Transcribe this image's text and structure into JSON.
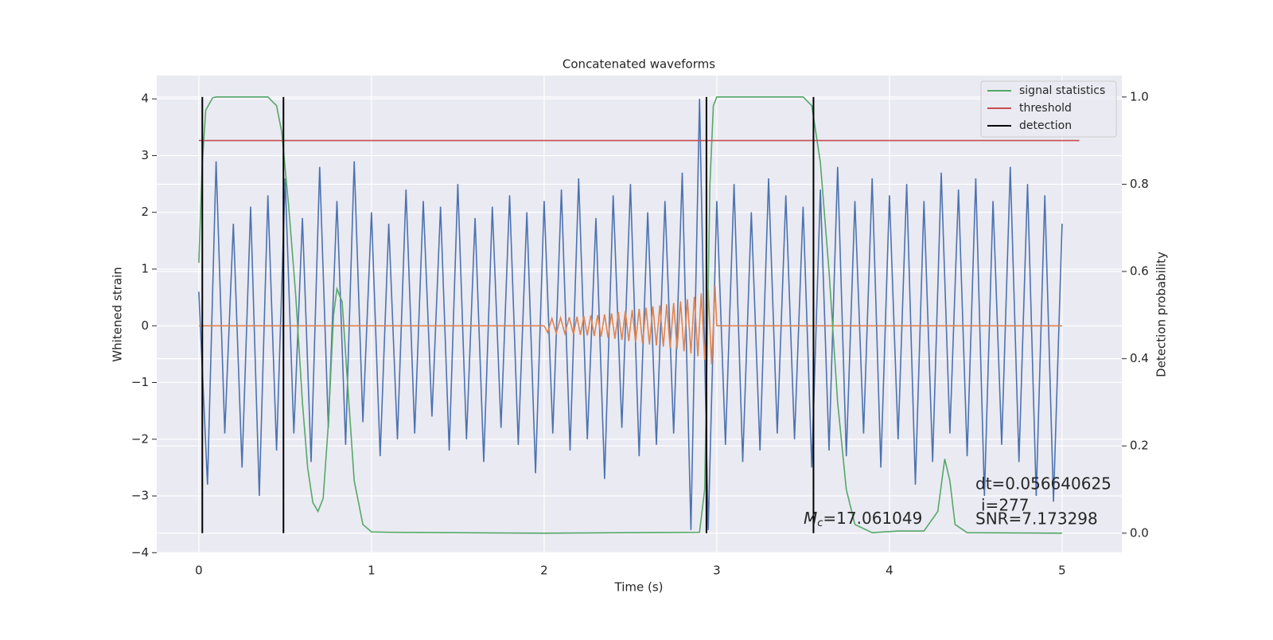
{
  "chart_data": {
    "type": "line",
    "title": "Concatenated waveforms",
    "xlabel": "Time (s)",
    "ylabel": "Whitened strain",
    "y2label": "Detection probability",
    "xlim": [
      -0.244,
      5.346
    ],
    "ylim": [
      -4.01,
      4.41
    ],
    "y2lim": [
      -0.046,
      1.049
    ],
    "xticks": [
      0,
      1,
      2,
      3,
      4,
      5
    ],
    "yticks": [
      {
        "value": -4,
        "label": "−4"
      },
      {
        "value": -3,
        "label": "−3"
      },
      {
        "value": -2,
        "label": "−2"
      },
      {
        "value": -1,
        "label": "−1"
      },
      0,
      1,
      2,
      3,
      4
    ],
    "y2ticks": [
      {
        "value": 0,
        "label": "0.0"
      },
      0.2,
      0.4,
      0.6,
      0.8,
      {
        "value": 1,
        "label": "1.0"
      }
    ],
    "grid": true,
    "legend": "upper right",
    "series": [
      {
        "color": "#4c72b0",
        "x": [
          0,
          0.05,
          0.1,
          0.15,
          0.2,
          0.25,
          0.3,
          0.35,
          0.4,
          0.45,
          0.5,
          0.55,
          0.6,
          0.65,
          0.7,
          0.75,
          0.8,
          0.85,
          0.9,
          0.95,
          1,
          1.05,
          1.1,
          1.15,
          1.2,
          1.25,
          1.3,
          1.35,
          1.4,
          1.45,
          1.5,
          1.55,
          1.6,
          1.65,
          1.7,
          1.75,
          1.8,
          1.85,
          1.9,
          1.95,
          2,
          2.05,
          2.1,
          2.15,
          2.2,
          2.25,
          2.3,
          2.35,
          2.4,
          2.45,
          2.5,
          2.55,
          2.6,
          2.65,
          2.7,
          2.75,
          2.8,
          2.85,
          2.9,
          2.95,
          3,
          3.05,
          3.1,
          3.15,
          3.2,
          3.25,
          3.3,
          3.35,
          3.4,
          3.45,
          3.5,
          3.55,
          3.6,
          3.65,
          3.7,
          3.75,
          3.8,
          3.85,
          3.9,
          3.95,
          4,
          4.05,
          4.1,
          4.15,
          4.2,
          4.25,
          4.3,
          4.35,
          4.4,
          4.45,
          4.5,
          4.55,
          4.6,
          4.65,
          4.7,
          4.75,
          4.8,
          4.85,
          4.9,
          4.95,
          5
        ],
        "values": [
          0.6,
          -2.8,
          2.9,
          -1.9,
          1.8,
          -2.5,
          2.1,
          -3.0,
          2.3,
          -2.2,
          2.6,
          -1.9,
          1.9,
          -2.4,
          2.8,
          -1.8,
          2.2,
          -2.1,
          2.9,
          -1.7,
          2.0,
          -2.3,
          1.8,
          -2.0,
          2.4,
          -1.9,
          2.2,
          -1.6,
          2.1,
          -2.2,
          2.5,
          -2.0,
          1.9,
          -2.4,
          2.1,
          -1.8,
          2.3,
          -2.1,
          2.0,
          -2.6,
          2.2,
          -1.9,
          2.4,
          -2.2,
          2.6,
          -2.0,
          1.9,
          -2.7,
          2.3,
          -1.8,
          2.5,
          -2.3,
          2.0,
          -2.1,
          2.2,
          -1.9,
          2.7,
          -3.6,
          4.0,
          -3.6,
          2.2,
          -2.1,
          2.5,
          -2.4,
          2.0,
          -2.2,
          2.6,
          -1.9,
          2.3,
          -2.0,
          2.1,
          -2.5,
          2.4,
          -2.2,
          2.8,
          -2.3,
          2.2,
          -1.9,
          2.6,
          -2.5,
          2.3,
          -2.0,
          2.5,
          -2.8,
          2.2,
          -2.4,
          2.7,
          -1.9,
          2.4,
          -2.3,
          2.6,
          -3.0,
          2.2,
          -2.1,
          2.8,
          -2.4,
          2.5,
          -3.0,
          2.3,
          -3.1,
          1.8
        ]
      },
      {
        "color": "#dd8452",
        "x": [
          0,
          2.0,
          2.02,
          2.045,
          2.07,
          2.095,
          2.12,
          2.145,
          2.17,
          2.19,
          2.21,
          2.23,
          2.25,
          2.27,
          2.29,
          2.31,
          2.33,
          2.35,
          2.37,
          2.39,
          2.41,
          2.43,
          2.45,
          2.47,
          2.49,
          2.51,
          2.53,
          2.55,
          2.57,
          2.59,
          2.61,
          2.63,
          2.65,
          2.67,
          2.69,
          2.71,
          2.73,
          2.75,
          2.77,
          2.79,
          2.81,
          2.83,
          2.85,
          2.87,
          2.89,
          2.91,
          2.93,
          2.95,
          2.97,
          2.99,
          3.0,
          5
        ],
        "values": [
          0,
          0,
          -0.12,
          0.13,
          -0.13,
          0.14,
          -0.14,
          0.15,
          -0.15,
          0.16,
          -0.16,
          0.17,
          -0.17,
          0.18,
          -0.18,
          0.19,
          -0.19,
          0.2,
          -0.21,
          0.22,
          -0.23,
          0.24,
          -0.25,
          0.26,
          -0.27,
          0.28,
          -0.29,
          0.3,
          -0.31,
          0.32,
          -0.33,
          0.34,
          -0.35,
          0.36,
          -0.37,
          0.38,
          -0.39,
          0.4,
          -0.41,
          0.43,
          -0.45,
          0.47,
          -0.49,
          0.51,
          -0.54,
          0.57,
          -0.6,
          0.64,
          -0.68,
          0.7,
          0,
          0
        ]
      },
      {
        "name": "signal statistics",
        "color": "#55a868",
        "axis": "y2",
        "x": [
          0,
          0.02,
          0.04,
          0.08,
          0.1,
          0.4,
          0.45,
          0.48,
          0.52,
          0.56,
          0.6,
          0.63,
          0.66,
          0.69,
          0.72,
          0.75,
          0.78,
          0.8,
          0.83,
          0.86,
          0.9,
          0.95,
          1.0,
          1.1,
          2,
          2.9,
          2.93,
          2.96,
          2.98,
          3.0,
          3.5,
          3.55,
          3.6,
          3.65,
          3.7,
          3.75,
          3.8,
          3.9,
          4.05,
          4.2,
          4.28,
          4.32,
          4.35,
          4.38,
          4.45,
          5
        ],
        "values": [
          0.62,
          0.85,
          0.97,
          0.998,
          1.0,
          1.0,
          0.98,
          0.92,
          0.75,
          0.55,
          0.3,
          0.15,
          0.07,
          0.05,
          0.08,
          0.25,
          0.5,
          0.56,
          0.53,
          0.35,
          0.12,
          0.02,
          0.003,
          0.002,
          0,
          0.002,
          0.1,
          0.8,
          0.98,
          1.0,
          1.0,
          0.98,
          0.85,
          0.6,
          0.3,
          0.1,
          0.02,
          0.001,
          0.005,
          0.005,
          0.05,
          0.17,
          0.12,
          0.02,
          0.001,
          0
        ]
      },
      {
        "name": "threshold",
        "color": "#c44e52",
        "axis": "y2",
        "x": [
          0,
          5.1
        ],
        "values": [
          0.9,
          0.9
        ]
      },
      {
        "name": "detection",
        "color": "#000000",
        "axis": "y2",
        "x": [
          0.02,
          0.49,
          2.94,
          3.56
        ],
        "span": [
          0,
          1
        ]
      }
    ],
    "annotations": [
      {
        "text": "dt=0.056640625"
      },
      {
        "text": "i=277"
      },
      {
        "text": "SNR=7.173298"
      },
      {
        "symbol": "M",
        "subscript": "c",
        "text": "=17.061049"
      }
    ]
  }
}
